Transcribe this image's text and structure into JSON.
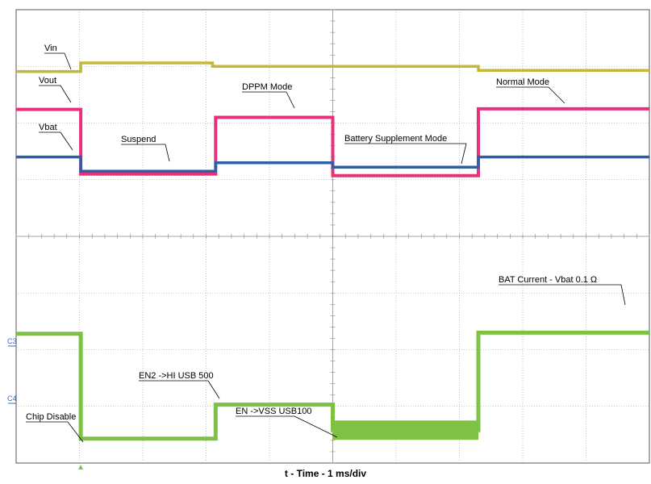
{
  "chart_data": {
    "type": "line",
    "title": "",
    "xlabel": "t - Time - 1 ms/div",
    "ylabel": "",
    "x_divisions": 10,
    "y_divisions": 8,
    "grid": true,
    "x_range_ms": [
      0,
      10
    ],
    "channel_markers": [
      "C3",
      "C4"
    ],
    "colors": {
      "vin": "#c2b83a",
      "vout": "#e8317a",
      "vbat": "#2c5fa8",
      "current": "#7dc242",
      "grid": "#9a9a9a"
    },
    "series": [
      {
        "key": "vin",
        "label": "Vin",
        "color": "#c2b83a",
        "x": [
          0,
          1.02,
          1.02,
          3.1,
          3.1,
          7.3,
          7.3,
          10
        ],
        "y": [
          6.91,
          6.91,
          7.06,
          7.06,
          7.0,
          7.0,
          6.93,
          6.93
        ]
      },
      {
        "key": "vout",
        "label": "Vout",
        "color": "#e8317a",
        "x": [
          0,
          1.02,
          1.02,
          3.15,
          3.15,
          5.0,
          5.0,
          7.3,
          7.3,
          10
        ],
        "y": [
          6.24,
          6.24,
          5.1,
          5.1,
          6.1,
          6.1,
          5.07,
          5.07,
          6.25,
          6.25
        ]
      },
      {
        "key": "vbat",
        "label": "Vbat",
        "color": "#2c5fa8",
        "x": [
          0,
          1.02,
          1.02,
          3.15,
          3.15,
          5.0,
          5.0,
          7.3,
          7.3,
          10
        ],
        "y": [
          5.4,
          5.4,
          5.15,
          5.15,
          5.3,
          5.3,
          5.22,
          5.22,
          5.4,
          5.4
        ]
      },
      {
        "key": "current",
        "label": "BAT Current - Vbat 0.1 Ω",
        "color": "#7dc242",
        "x": [
          0,
          1.02,
          1.02,
          3.15,
          3.15,
          5.0,
          5.0,
          7.3,
          7.3,
          10
        ],
        "y": [
          2.28,
          2.28,
          0.43,
          0.43,
          1.03,
          1.03,
          0.58,
          0.58,
          2.3,
          2.3
        ]
      }
    ],
    "annotations": [
      {
        "key": "vin",
        "text": "Vin"
      },
      {
        "key": "vout",
        "text": "Vout"
      },
      {
        "key": "vbat",
        "text": "Vbat"
      },
      {
        "key": "suspend",
        "text": "Suspend"
      },
      {
        "key": "dppm",
        "text": "DPPM Mode"
      },
      {
        "key": "battery_supplement",
        "text": "Battery Supplement Mode"
      },
      {
        "key": "normal",
        "text": "Normal Mode"
      },
      {
        "key": "bat_current",
        "text": "BAT Current - Vbat 0.1 Ω"
      },
      {
        "key": "en2",
        "text": "EN2 ->HI USB 500"
      },
      {
        "key": "en",
        "text": "EN ->VSS USB100"
      },
      {
        "key": "chip_disable",
        "text": "Chip Disable"
      }
    ]
  }
}
